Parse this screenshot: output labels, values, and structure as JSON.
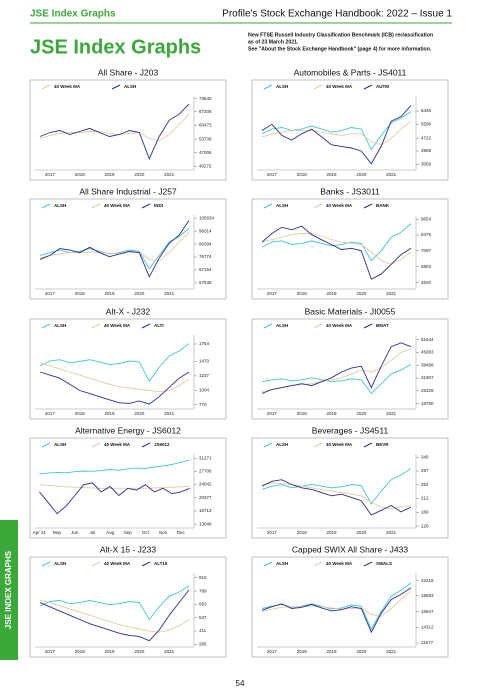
{
  "header": {
    "left": "JSE Index Graphs",
    "right": "Profile's Stock Exchange Handbook: 2022 – Issue 1"
  },
  "title": "JSE Index Graphs",
  "note": [
    "New FTSE Russell Industry Classification Benchmark (ICB) reclassification",
    "as of 23 March 2021.",
    "See \"About the Stock Exchange Handbook\" (page 4) for more information."
  ],
  "side_tab": "JSE INDEX GRAPHS",
  "page_number": "54",
  "chart_data": [
    {
      "type": "line",
      "title": "All Share - J203",
      "categories": [
        null,
        "2017",
        null,
        null,
        "2018",
        null,
        null,
        "2019",
        null,
        null,
        "2020",
        null,
        null,
        "2021",
        null,
        null
      ],
      "series": [
        {
          "name": "40 Week MA",
          "color": "#e8c9a0",
          "values": [
            54000,
            55500,
            56500,
            57000,
            57000,
            57500,
            57500,
            56500,
            56000,
            56500,
            57000,
            54000,
            53000,
            56000,
            61000,
            66000
          ]
        },
        {
          "name": "ALSH",
          "color": "#2b2f8f",
          "values": [
            55000,
            57000,
            58000,
            56000,
            57500,
            59000,
            57000,
            55000,
            56000,
            58000,
            57000,
            44000,
            55000,
            63000,
            66000,
            71000
          ]
        }
      ],
      "ylim": [
        38500,
        75000
      ],
      "yticks": [
        73640,
        67208,
        60473,
        53739,
        47006,
        40272
      ]
    },
    {
      "type": "line",
      "title": "Automobiles & Parts - JS4011",
      "categories": [
        null,
        "2017",
        null,
        null,
        "2018",
        null,
        null,
        "2019",
        null,
        null,
        "2020",
        null,
        null,
        "2021",
        null,
        null
      ],
      "series": [
        {
          "name": "ALSH",
          "color": "#3cc8d8",
          "values": [
            5000,
            5300,
            5400,
            5200,
            5300,
            5500,
            5300,
            5100,
            5200,
            5400,
            5300,
            4000,
            4900,
            5700,
            6000,
            6400
          ]
        },
        {
          "name": "40 Week MA",
          "color": "#e8c9a0",
          "values": [
            4800,
            5000,
            5100,
            5200,
            5200,
            5200,
            5100,
            5000,
            4900,
            5000,
            5000,
            4500,
            4300,
            4700,
            5300,
            5800
          ]
        },
        {
          "name": "AUTM",
          "color": "#2b2f8f",
          "values": [
            5200,
            5600,
            4900,
            4600,
            5000,
            5300,
            4800,
            4300,
            4200,
            4100,
            3900,
            3100,
            4200,
            5800,
            6100,
            6800
          ]
        }
      ],
      "ylim": [
        2700,
        7400
      ],
      "yticks": [
        6445,
        5596,
        4722,
        3906,
        3059
      ]
    },
    {
      "type": "line",
      "title": "All Share Industrial - J257",
      "categories": [
        null,
        "2017",
        null,
        null,
        "2018",
        null,
        null,
        "2019",
        null,
        null,
        "2020",
        null,
        null,
        "2021",
        null,
        null
      ],
      "series": [
        {
          "name": "ALSH",
          "color": "#3cc8d8",
          "values": [
            78000,
            80000,
            82000,
            80000,
            81000,
            83000,
            81000,
            79000,
            80000,
            82000,
            81000,
            68000,
            78000,
            88000,
            92000,
            98000
          ]
        },
        {
          "name": "40 Week MA",
          "color": "#e8c9a0",
          "values": [
            76000,
            78000,
            79000,
            80000,
            80000,
            80500,
            80000,
            79500,
            79000,
            80000,
            80500,
            75000,
            74000,
            80000,
            88000,
            95000
          ]
        },
        {
          "name": "INDI",
          "color": "#2b2f8f",
          "values": [
            75000,
            78000,
            83000,
            82000,
            80000,
            84000,
            80000,
            77000,
            79000,
            81000,
            80000,
            62000,
            76000,
            87000,
            93000,
            104000
          ]
        }
      ],
      "ylim": [
        53000,
        108000
      ],
      "yticks": [
        105634,
        96014,
        86394,
        76774,
        67154,
        57535
      ]
    },
    {
      "type": "line",
      "title": "Banks - JS3011",
      "categories": [
        null,
        "2017",
        null,
        null,
        "2018",
        null,
        null,
        "2019",
        null,
        null,
        "2020",
        null,
        null,
        "2021",
        null,
        null
      ],
      "series": [
        {
          "name": "ALSH",
          "color": "#3cc8d8",
          "values": [
            7400,
            7800,
            7900,
            7600,
            7700,
            7900,
            7700,
            7500,
            7600,
            7800,
            7700,
            6300,
            7100,
            8200,
            8600,
            9300
          ]
        },
        {
          "name": "40 Week MA",
          "color": "#e8c9a0",
          "values": [
            7800,
            8000,
            8200,
            8400,
            8500,
            8500,
            8300,
            8000,
            7800,
            7700,
            7600,
            7000,
            6300,
            6000,
            6400,
            7000
          ]
        },
        {
          "name": "BANK",
          "color": "#2b2f8f",
          "values": [
            7800,
            8500,
            9000,
            8800,
            9100,
            8400,
            8000,
            7600,
            7200,
            7300,
            7100,
            4800,
            5200,
            6000,
            6800,
            7300
          ]
        }
      ],
      "ylim": [
        4000,
        10000
      ],
      "yticks": [
        9654,
        8375,
        7097,
        5803,
        4520
      ]
    },
    {
      "type": "line",
      "title": "Alt-X - J232",
      "categories": [
        null,
        "2017",
        null,
        null,
        "2018",
        null,
        null,
        "2019",
        null,
        null,
        "2020",
        null,
        null,
        "2021",
        null,
        null
      ],
      "series": [
        {
          "name": "ALSH",
          "color": "#3cc8d8",
          "values": [
            1400,
            1480,
            1500,
            1450,
            1470,
            1500,
            1460,
            1420,
            1440,
            1480,
            1460,
            1150,
            1380,
            1560,
            1640,
            1760
          ]
        },
        {
          "name": "40 Week MA",
          "color": "#e8c9a0",
          "values": [
            1450,
            1400,
            1350,
            1300,
            1250,
            1200,
            1150,
            1100,
            1060,
            1040,
            1020,
            1000,
            980,
            1000,
            1080,
            1180
          ]
        },
        {
          "name": "ALTI",
          "color": "#2b2f8f",
          "values": [
            1300,
            1250,
            1200,
            1100,
            1000,
            950,
            900,
            850,
            800,
            790,
            830,
            780,
            900,
            1050,
            1200,
            1300
          ]
        }
      ],
      "ylim": [
        700,
        1900
      ],
      "yticks": [
        1754,
        1470,
        1237,
        1004,
        770
      ]
    },
    {
      "type": "line",
      "title": "Basic Materials - JI0055",
      "categories": [
        null,
        "2017",
        null,
        null,
        "2018",
        null,
        null,
        "2019",
        null,
        null,
        "2020",
        null,
        null,
        "2021",
        null,
        null
      ],
      "series": [
        {
          "name": "ALSH",
          "color": "#3cc8d8",
          "values": [
            30000,
            31000,
            31500,
            30500,
            31000,
            32000,
            31000,
            30000,
            30500,
            31500,
            31000,
            24000,
            29000,
            34000,
            36000,
            39000
          ]
        },
        {
          "name": "40 Week MA",
          "color": "#e8c9a0",
          "values": [
            25000,
            26000,
            27000,
            28000,
            28500,
            29000,
            30000,
            31000,
            32000,
            34000,
            36000,
            35000,
            37000,
            41000,
            45000,
            47000
          ]
        },
        {
          "name": "BMAT",
          "color": "#2b2f8f",
          "values": [
            24000,
            26000,
            27000,
            28000,
            29000,
            28000,
            30000,
            32000,
            35000,
            37000,
            38000,
            27000,
            38000,
            48000,
            50000,
            48000
          ]
        }
      ],
      "ylim": [
        16000,
        54000
      ],
      "yticks": [
        51644,
        45083,
        38488,
        31907,
        25329,
        18750
      ]
    },
    {
      "type": "line",
      "title": "Alternative Energy - JS6012",
      "categories": [
        "Apr 21",
        null,
        "May",
        null,
        "Jun",
        null,
        "Jul",
        null,
        "Aug",
        null,
        "Sep",
        null,
        "Oct",
        null,
        "Nov",
        null,
        "Dec",
        null
      ],
      "series": [
        {
          "name": "ALSH",
          "color": "#3cc8d8",
          "values": [
            27000,
            27200,
            27400,
            27300,
            27600,
            27800,
            27700,
            27900,
            28200,
            28000,
            28400,
            28600,
            28500,
            28900,
            29200,
            29600,
            30200,
            30800
          ]
        },
        {
          "name": "40 Week MA",
          "color": "#e8c9a0",
          "values": [
            24000,
            23800,
            23600,
            23400,
            23300,
            23200,
            23100,
            23000,
            23000,
            23000,
            23000,
            23000,
            23000,
            23100,
            23200,
            23300,
            23400,
            23500
          ]
        },
        {
          "name": "JS6012",
          "color": "#2b2f8f",
          "values": [
            22000,
            19000,
            16000,
            18000,
            21000,
            24000,
            24500,
            22000,
            23500,
            21000,
            23000,
            22500,
            24000,
            22000,
            23000,
            21500,
            22000,
            23000
          ]
        }
      ],
      "ylim": [
        12000,
        32500
      ],
      "yticks": [
        31271,
        27706,
        24042,
        20377,
        16713,
        13048
      ]
    },
    {
      "type": "line",
      "title": "Beverages - JS4511",
      "categories": [
        null,
        "2017",
        null,
        null,
        "2018",
        null,
        null,
        "2019",
        null,
        null,
        "2020",
        null,
        null,
        "2021",
        null,
        null
      ],
      "series": [
        {
          "name": "ALSH",
          "color": "#3cc8d8",
          "values": [
            240,
            250,
            255,
            245,
            250,
            255,
            250,
            245,
            248,
            255,
            252,
            195,
            235,
            270,
            285,
            305
          ]
        },
        {
          "name": "40 Week MA",
          "color": "#e8c9a0",
          "values": [
            255,
            260,
            258,
            255,
            250,
            245,
            240,
            235,
            230,
            225,
            220,
            200,
            185,
            180,
            185,
            190
          ]
        },
        {
          "name": "BEVR",
          "color": "#2b2f8f",
          "values": [
            250,
            265,
            270,
            255,
            245,
            240,
            230,
            220,
            225,
            215,
            205,
            160,
            175,
            190,
            170,
            185
          ]
        }
      ],
      "ylim": [
        120,
        350
      ],
      "yticks": [
        340,
        297,
        254,
        212,
        169,
        126
      ]
    },
    {
      "type": "line",
      "title": "Alt-X 15 - J233",
      "categories": [
        null,
        "2017",
        null,
        null,
        "2018",
        null,
        null,
        "2019",
        null,
        null,
        "2020",
        null,
        null,
        "2021",
        null,
        null
      ],
      "series": [
        {
          "name": "ALSH",
          "color": "#3cc8d8",
          "values": [
            650,
            690,
            700,
            670,
            680,
            700,
            680,
            660,
            670,
            690,
            680,
            520,
            640,
            740,
            780,
            840
          ]
        },
        {
          "name": "40 Week MA",
          "color": "#e8c9a0",
          "values": [
            700,
            680,
            650,
            620,
            590,
            560,
            530,
            500,
            470,
            450,
            430,
            410,
            400,
            420,
            460,
            520
          ]
        },
        {
          "name": "ALT15",
          "color": "#2b2f8f",
          "values": [
            680,
            640,
            600,
            560,
            520,
            480,
            450,
            420,
            390,
            370,
            360,
            320,
            420,
            560,
            680,
            800
          ]
        }
      ],
      "ylim": [
        260,
        960
      ],
      "yticks": [
        915,
        789,
        663,
        537,
        411,
        285
      ]
    },
    {
      "type": "line",
      "title": "Capped SWIX All Share - J433",
      "categories": [
        null,
        "2017",
        null,
        null,
        "2018",
        null,
        null,
        "2019",
        null,
        null,
        "2020",
        null,
        null,
        "2021",
        null,
        null
      ],
      "series": [
        {
          "name": "ALSH",
          "color": "#3cc8d8",
          "values": [
            17500,
            17900,
            18200,
            17700,
            17900,
            18300,
            17900,
            17400,
            17600,
            18100,
            17900,
            14000,
            17000,
            19600,
            20600,
            21800
          ]
        },
        {
          "name": "40 Week MA",
          "color": "#e8c9a0",
          "values": [
            17000,
            17400,
            17700,
            17800,
            17800,
            17900,
            17800,
            17600,
            17400,
            17500,
            17600,
            16500,
            16200,
            17500,
            19000,
            20500
          ]
        },
        {
          "name": "SWALS",
          "color": "#2b2f8f",
          "values": [
            17200,
            17800,
            18300,
            17500,
            17700,
            18200,
            17600,
            17100,
            17300,
            17800,
            17500,
            13500,
            16700,
            19000,
            19900,
            21000
          ]
        }
      ],
      "ylim": [
        11000,
        23500
      ],
      "yticks": [
        22218,
        19683,
        16947,
        14312,
        11677
      ]
    }
  ]
}
